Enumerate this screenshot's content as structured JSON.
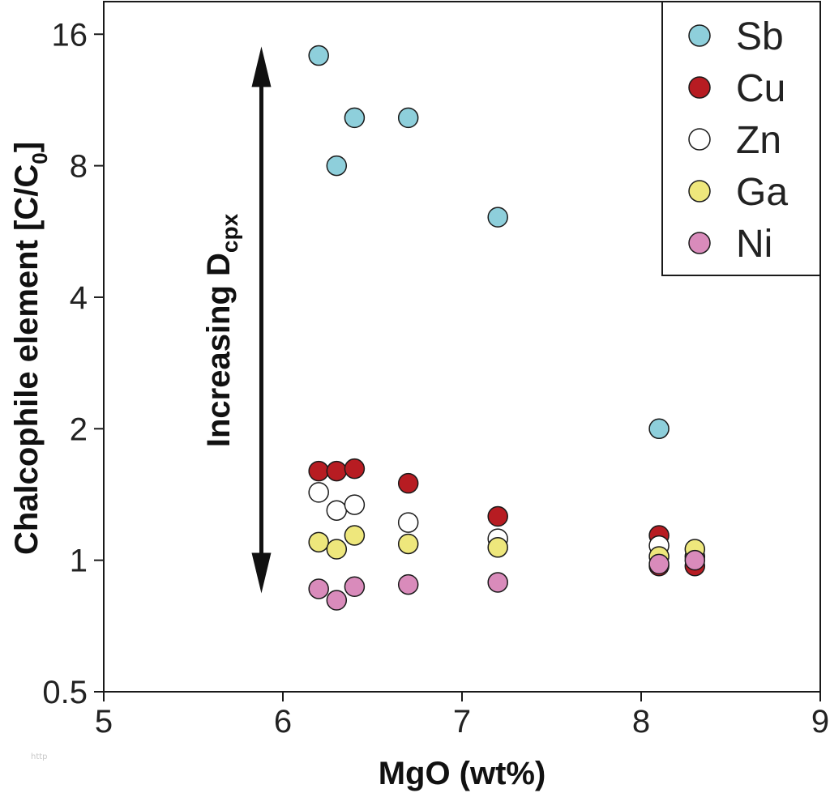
{
  "chart_data": {
    "type": "scatter",
    "title": "",
    "xlabel": "MgO (wt%)",
    "ylabel_main": "Chalcophile element [C/C",
    "ylabel_sub": "0",
    "ylabel_close": "]",
    "xlim": [
      5,
      9
    ],
    "ylim": [
      0.5,
      19
    ],
    "yscale": "log2",
    "xticks": [
      5,
      6,
      7,
      8,
      9
    ],
    "yticks": [
      {
        "value": 0.5,
        "label": "0.5"
      },
      {
        "value": 1,
        "label": "1"
      },
      {
        "value": 2,
        "label": "2"
      },
      {
        "value": 4,
        "label": "4"
      },
      {
        "value": 8,
        "label": "8"
      },
      {
        "value": 16,
        "label": "16"
      }
    ],
    "legend_position": "top-right",
    "annotation": {
      "text_main": "Increasing D",
      "text_sub": "cpx",
      "from": [
        5.88,
        0.84
      ],
      "to": [
        5.88,
        15
      ]
    },
    "series": [
      {
        "name": "Sb",
        "color": "#8ecfdb",
        "points": [
          [
            6.2,
            14.3
          ],
          [
            6.4,
            10.3
          ],
          [
            6.3,
            8.0
          ],
          [
            6.7,
            10.3
          ],
          [
            7.2,
            6.1
          ],
          [
            8.1,
            2.0
          ]
        ]
      },
      {
        "name": "Cu",
        "color": "#b71c22",
        "points": [
          [
            6.2,
            1.6
          ],
          [
            6.3,
            1.6
          ],
          [
            6.4,
            1.62
          ],
          [
            6.7,
            1.5
          ],
          [
            7.2,
            1.26
          ],
          [
            8.1,
            1.14
          ],
          [
            8.1,
            0.97
          ],
          [
            8.3,
            0.97
          ]
        ]
      },
      {
        "name": "Zn",
        "color": "#ffffff",
        "points": [
          [
            6.2,
            1.43
          ],
          [
            6.3,
            1.3
          ],
          [
            6.4,
            1.34
          ],
          [
            6.7,
            1.22
          ],
          [
            7.2,
            1.12
          ],
          [
            8.1,
            1.08
          ],
          [
            8.3,
            1.02
          ]
        ]
      },
      {
        "name": "Ga",
        "color": "#eee77c",
        "points": [
          [
            6.2,
            1.1
          ],
          [
            6.3,
            1.06
          ],
          [
            6.4,
            1.14
          ],
          [
            6.7,
            1.09
          ],
          [
            7.2,
            1.07
          ],
          [
            8.1,
            1.02
          ],
          [
            8.3,
            1.06
          ]
        ]
      },
      {
        "name": "Ni",
        "color": "#d98bbb",
        "points": [
          [
            6.2,
            0.86
          ],
          [
            6.3,
            0.81
          ],
          [
            6.4,
            0.87
          ],
          [
            6.7,
            0.88
          ],
          [
            7.2,
            0.89
          ],
          [
            8.1,
            0.98
          ],
          [
            8.3,
            1.0
          ]
        ]
      }
    ]
  },
  "watermark": "http"
}
